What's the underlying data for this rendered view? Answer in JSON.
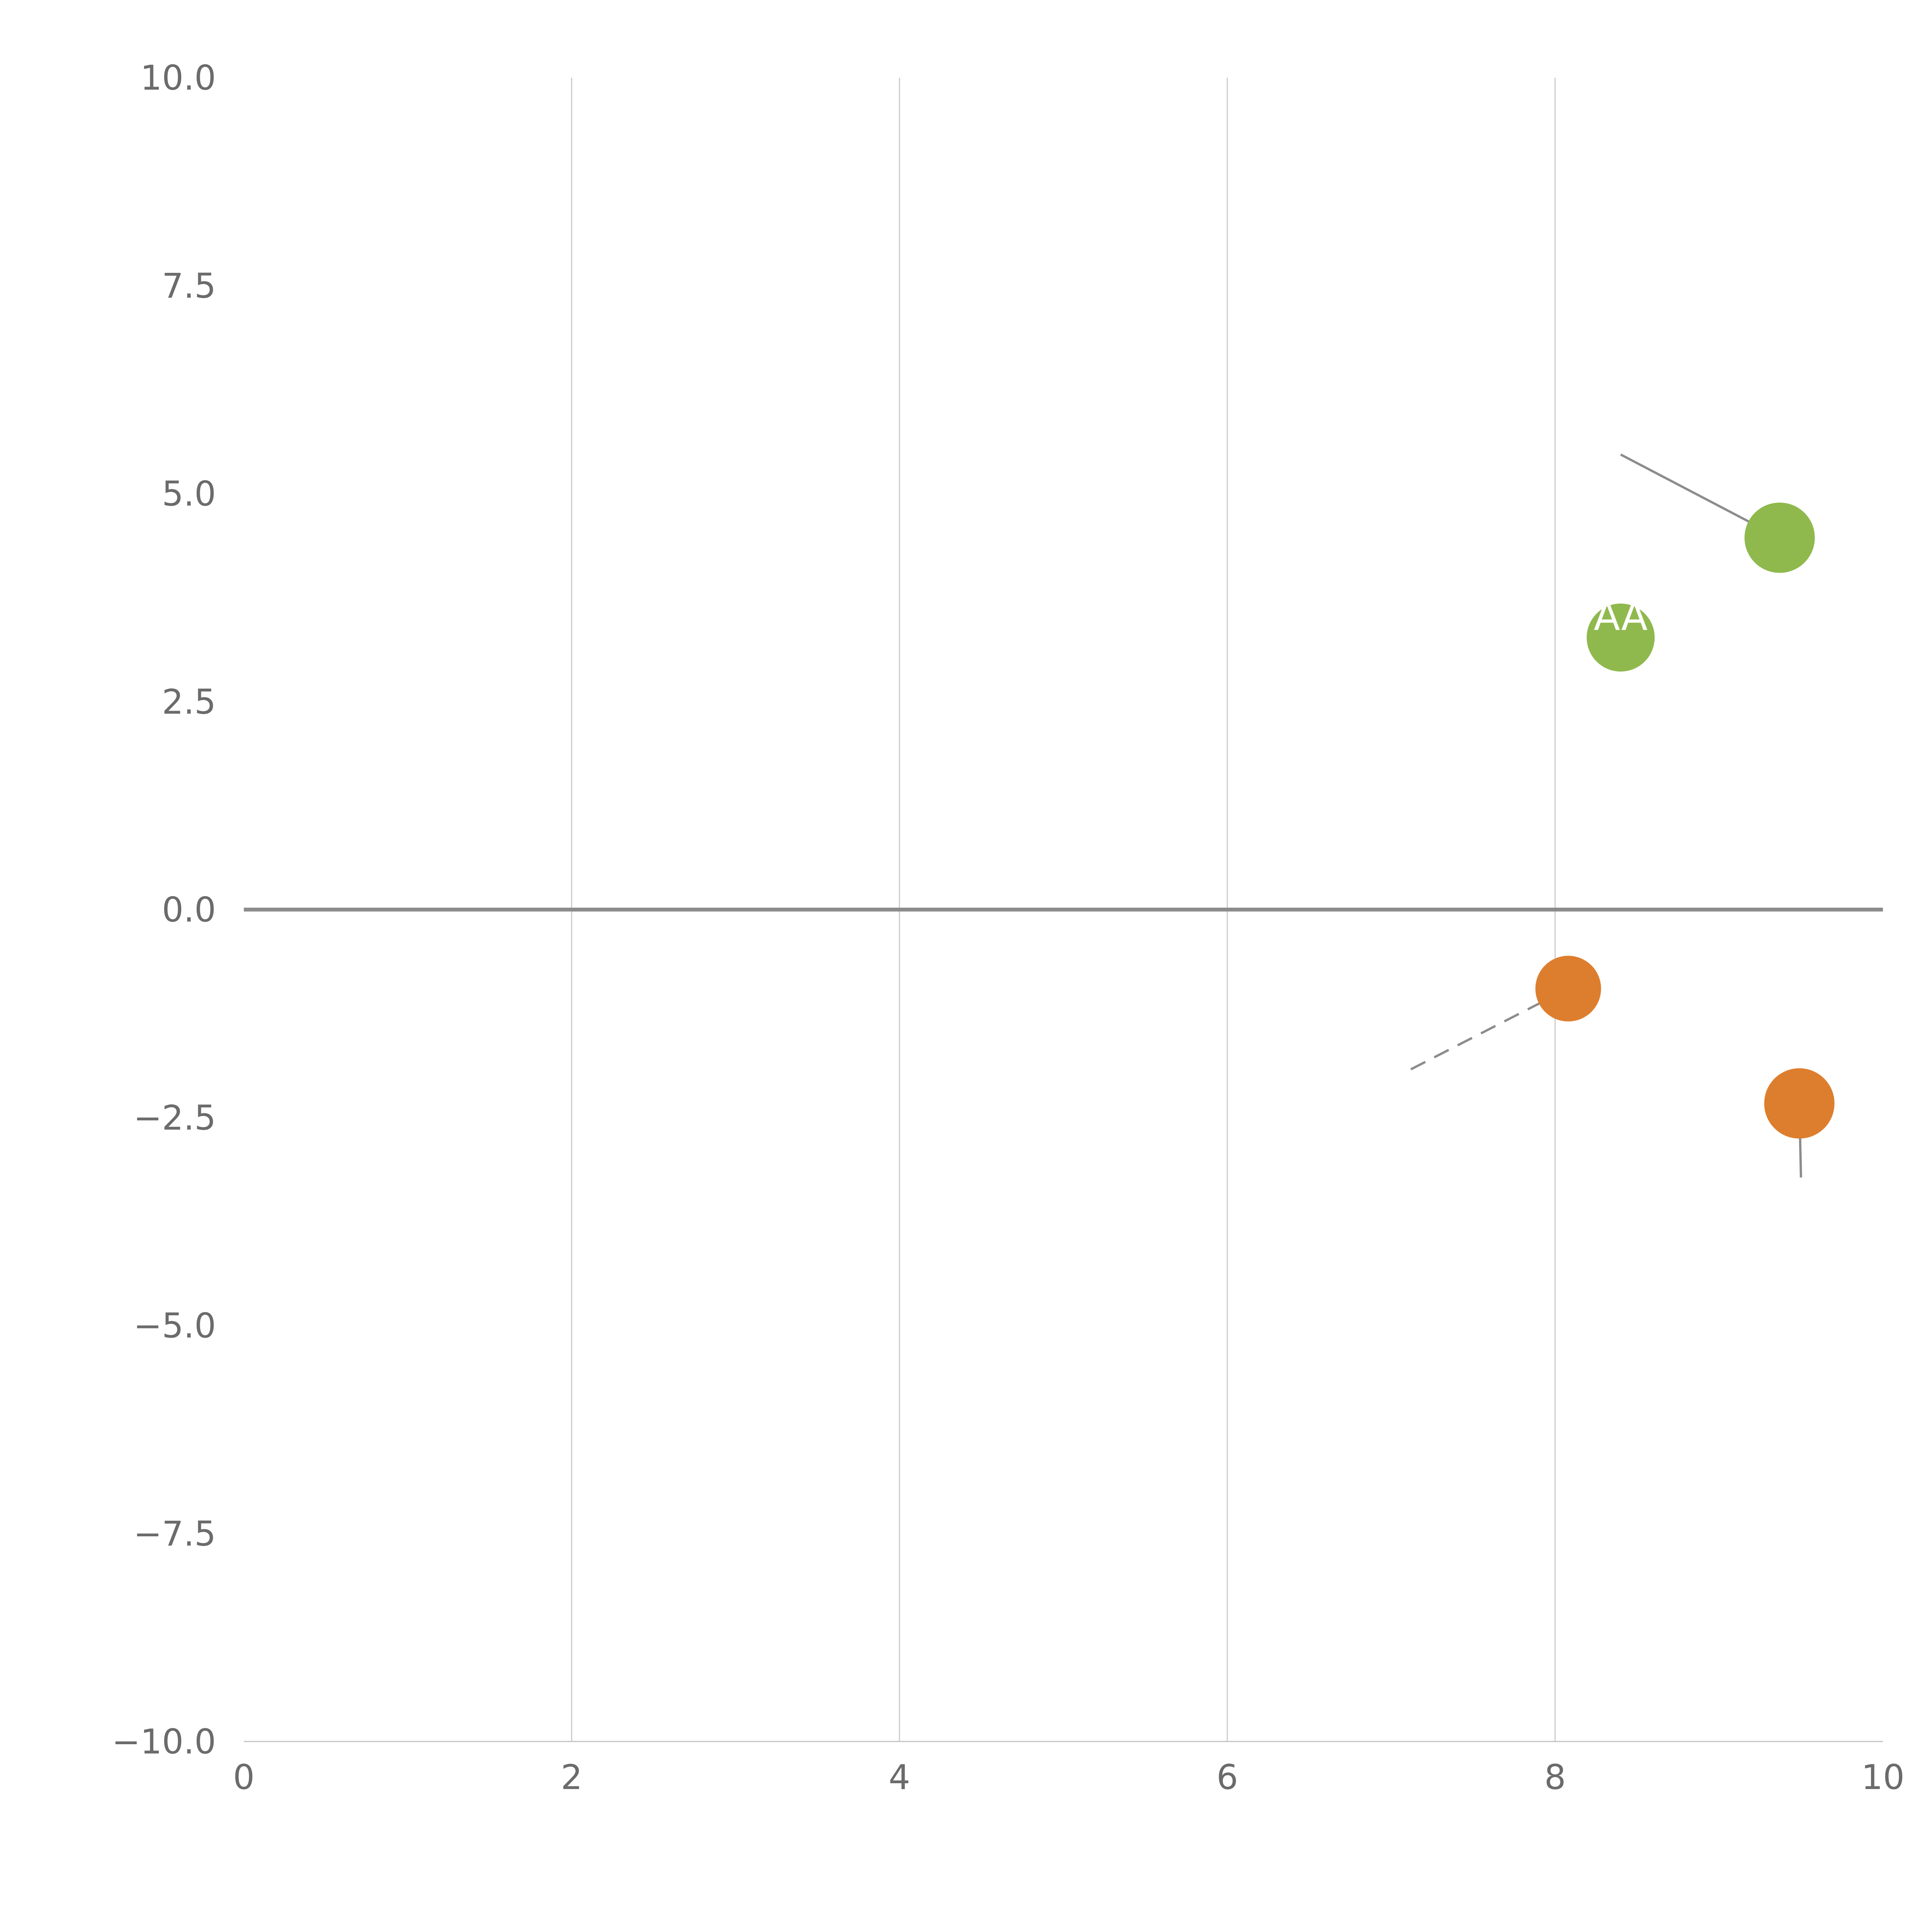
{
  "chart_data": {
    "type": "scatter",
    "title": "",
    "xlabel": "",
    "ylabel": "",
    "xlim": [
      0,
      10
    ],
    "ylim": [
      -10,
      10
    ],
    "grid": "vertical-only",
    "legend": "none",
    "x_ticks": [
      {
        "v": 0,
        "label": "0"
      },
      {
        "v": 2,
        "label": "2"
      },
      {
        "v": 4,
        "label": "4"
      },
      {
        "v": 6,
        "label": "6"
      },
      {
        "v": 8,
        "label": "8"
      },
      {
        "v": 10,
        "label": "10"
      }
    ],
    "y_ticks": [
      {
        "v": 10,
        "label": "10.0"
      },
      {
        "v": 7.5,
        "label": "7.5"
      },
      {
        "v": 5,
        "label": "5.0"
      },
      {
        "v": 2.5,
        "label": "2.5"
      },
      {
        "v": 0,
        "label": "0.0"
      },
      {
        "v": -2.5,
        "label": "−2.5"
      },
      {
        "v": -5,
        "label": "−5.0"
      },
      {
        "v": -7.5,
        "label": "−7.5"
      },
      {
        "v": -10,
        "label": "−10.0"
      }
    ],
    "grid_x": [
      2,
      4,
      6,
      8
    ],
    "zero_line_y": 0,
    "colors": {
      "green": "#8fb94d",
      "orange": "#dd7e2e",
      "grid": "#cccccc",
      "axis": "#c4c4c4",
      "zero": "#8c8c8c",
      "trail": "#8c8c8c",
      "tick_text": "#6b6b6b",
      "label_text": "#ffffff"
    },
    "points": [
      {
        "x": 9.37,
        "y": 4.47,
        "r": 91,
        "color": "green",
        "label": "",
        "trail": {
          "x": 8.4,
          "y": 5.47
        },
        "trail_dashed": false
      },
      {
        "x": 8.4,
        "y": 3.27,
        "r": 88,
        "color": "green",
        "label": "AA",
        "trail": null,
        "trail_dashed": false
      },
      {
        "x": 8.08,
        "y": -0.95,
        "r": 85,
        "color": "orange",
        "label": "",
        "trail": {
          "x": 7.12,
          "y": -1.92
        },
        "trail_dashed": true
      },
      {
        "x": 9.49,
        "y": -2.33,
        "r": 91,
        "color": "orange",
        "label": "",
        "trail": {
          "x": 9.5,
          "y": -3.22
        },
        "trail_dashed": false
      }
    ]
  }
}
